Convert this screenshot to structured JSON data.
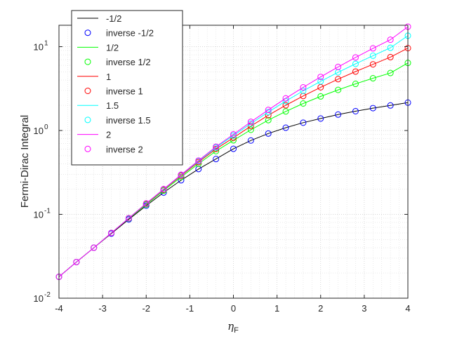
{
  "chart_data": {
    "type": "line",
    "xlabel": "η",
    "xlabel_sub": "F",
    "ylabel": "Fermi-Dirac Integral",
    "xlim": [
      -4,
      4
    ],
    "ylim": [
      0.01,
      18
    ],
    "y_scale": "log",
    "grid": true,
    "minor_grid": true,
    "x_ticks": [
      -4,
      -3,
      -2,
      -1,
      0,
      1,
      2,
      3,
      4
    ],
    "x_tick_labels": [
      "-4",
      "-3",
      "-2",
      "-1",
      "0",
      "1",
      "2",
      "3",
      "4"
    ],
    "y_ticks": [
      0.01,
      0.1,
      1,
      10
    ],
    "y_tick_labels": [
      {
        "base": "10",
        "exp": "-2"
      },
      {
        "base": "10",
        "exp": "-1"
      },
      {
        "base": "10",
        "exp": "0"
      },
      {
        "base": "10",
        "exp": "1"
      }
    ],
    "legend_placement": "top-left",
    "x": [
      -4,
      -3.6,
      -3.2,
      -2.8,
      -2.4,
      -2,
      -1.6,
      -1.2,
      -0.8,
      -0.4,
      0,
      0.4,
      0.8,
      1.2,
      1.6,
      2,
      2.4,
      2.8,
      3.2,
      3.6,
      4
    ],
    "series": [
      {
        "name": "-1/2",
        "color": "#000000",
        "style": "line",
        "values": [
          0.018,
          0.027,
          0.04,
          0.059,
          0.087,
          0.127,
          0.182,
          0.255,
          0.347,
          0.457,
          0.605,
          0.76,
          0.92,
          1.08,
          1.24,
          1.39,
          1.55,
          1.7,
          1.85,
          1.99,
          2.15
        ]
      },
      {
        "name": "inverse -1/2",
        "color": "#0000ff",
        "style": "marker",
        "values": [
          0.018,
          0.027,
          0.04,
          0.059,
          0.087,
          0.127,
          0.182,
          0.255,
          0.347,
          0.457,
          0.605,
          0.76,
          0.92,
          1.08,
          1.24,
          1.39,
          1.55,
          1.7,
          1.85,
          1.99,
          2.15
        ]
      },
      {
        "name": "1/2",
        "color": "#00ff00",
        "style": "line",
        "values": [
          0.018,
          0.027,
          0.04,
          0.06,
          0.089,
          0.131,
          0.192,
          0.279,
          0.401,
          0.568,
          0.765,
          1.02,
          1.33,
          1.69,
          2.1,
          2.55,
          3.05,
          3.6,
          4.2,
          4.85,
          6.4
        ]
      },
      {
        "name": "inverse 1/2",
        "color": "#00ff00",
        "style": "marker",
        "values": [
          0.018,
          0.027,
          0.04,
          0.06,
          0.089,
          0.131,
          0.192,
          0.279,
          0.401,
          0.568,
          0.765,
          1.02,
          1.33,
          1.69,
          2.1,
          2.55,
          3.05,
          3.6,
          4.2,
          4.85,
          6.4
        ]
      },
      {
        "name": "1",
        "color": "#ff0000",
        "style": "line",
        "values": [
          0.018,
          0.027,
          0.04,
          0.06,
          0.09,
          0.134,
          0.197,
          0.289,
          0.42,
          0.603,
          0.82,
          1.13,
          1.52,
          2.0,
          2.58,
          3.28,
          4.1,
          5.05,
          6.15,
          7.5,
          9.6
        ]
      },
      {
        "name": "inverse 1",
        "color": "#ff0000",
        "style": "marker",
        "values": [
          0.018,
          0.027,
          0.04,
          0.06,
          0.09,
          0.134,
          0.197,
          0.289,
          0.42,
          0.603,
          0.82,
          1.13,
          1.52,
          2.0,
          2.58,
          3.28,
          4.1,
          5.05,
          6.15,
          7.5,
          9.6
        ]
      },
      {
        "name": "1.5",
        "color": "#00ffff",
        "style": "line",
        "values": [
          0.018,
          0.027,
          0.04,
          0.06,
          0.09,
          0.135,
          0.199,
          0.294,
          0.431,
          0.626,
          0.87,
          1.21,
          1.66,
          2.24,
          2.97,
          3.86,
          4.94,
          6.24,
          7.8,
          9.7,
          13.5
        ]
      },
      {
        "name": "inverse 1.5",
        "color": "#00ffff",
        "style": "marker",
        "values": [
          0.018,
          0.027,
          0.04,
          0.06,
          0.09,
          0.135,
          0.199,
          0.294,
          0.431,
          0.626,
          0.87,
          1.21,
          1.66,
          2.24,
          2.97,
          3.86,
          4.94,
          6.24,
          7.8,
          9.7,
          13.5
        ]
      },
      {
        "name": "2",
        "color": "#ff00ff",
        "style": "line",
        "values": [
          0.018,
          0.027,
          0.04,
          0.06,
          0.09,
          0.135,
          0.2,
          0.297,
          0.438,
          0.641,
          0.9,
          1.27,
          1.76,
          2.42,
          3.27,
          4.36,
          5.73,
          7.44,
          9.55,
          12.1,
          17.3
        ]
      },
      {
        "name": "inverse 2",
        "color": "#ff00ff",
        "style": "marker",
        "values": [
          0.018,
          0.027,
          0.04,
          0.06,
          0.09,
          0.135,
          0.2,
          0.297,
          0.438,
          0.641,
          0.9,
          1.27,
          1.76,
          2.42,
          3.27,
          4.36,
          5.73,
          7.44,
          9.55,
          12.1,
          17.3
        ]
      }
    ]
  }
}
